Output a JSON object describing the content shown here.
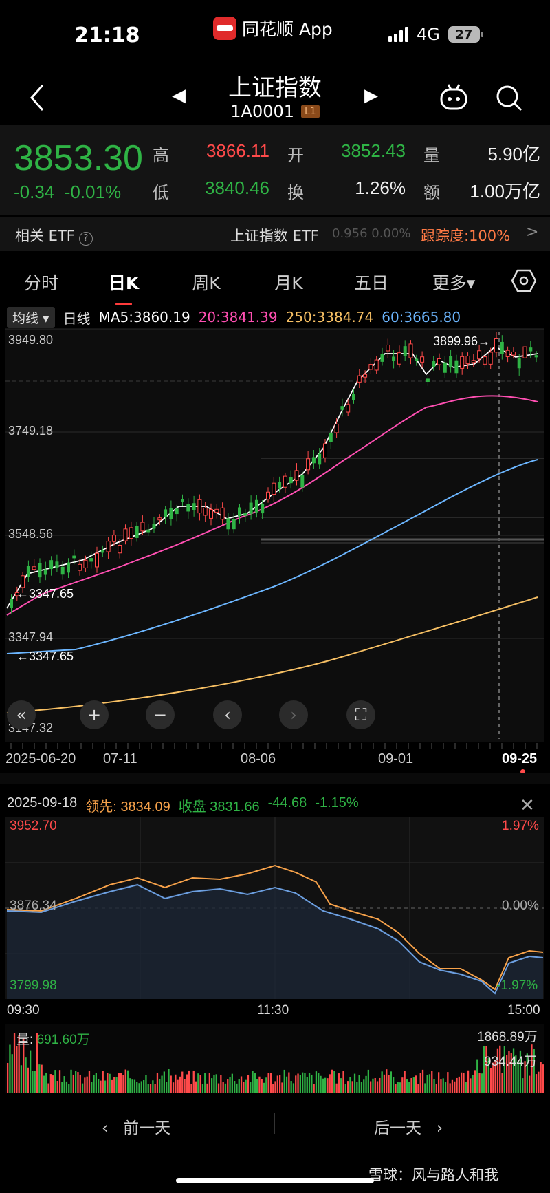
{
  "status_bar": {
    "time": "21:18",
    "app": "同花顺 App",
    "network": "4G",
    "battery": "27"
  },
  "header": {
    "title": "上证指数",
    "code": "1A0001",
    "level": "L1"
  },
  "quote": {
    "price": "3853.30",
    "change": "-0.34",
    "change_pct": "-0.01%",
    "high_label": "高",
    "high": "3866.11",
    "low_label": "低",
    "low": "3840.46",
    "open_label": "开",
    "open": "3852.43",
    "turnover_label": "换",
    "turnover": "1.26%",
    "volume_label": "量",
    "volume": "5.90亿",
    "amount_label": "额",
    "amount": "1.00万亿"
  },
  "etf": {
    "label": "相关 ETF",
    "help": "?",
    "name": "上证指数 ETF",
    "values": "0.956 0.00%",
    "tracking": "跟踪度:100%",
    "chevron": ">"
  },
  "tabs": [
    "分时",
    "日K",
    "周K",
    "月K",
    "五日",
    "更多▾"
  ],
  "active_tab": 1,
  "ma_legend": {
    "selector": "均线",
    "period": "日线",
    "ma5": "MA5:3860.19",
    "ma20": "20:3841.39",
    "ma250": "250:3384.74",
    "ma60": "60:3665.80",
    "colors": {
      "ma5": "#ffffff",
      "ma20": "#ff4fb2",
      "ma250": "#f7c064",
      "ma60": "#6cb6ff"
    }
  },
  "kline": {
    "y_labels": [
      "3949.80",
      "3749.18",
      "3548.56",
      "3347.94",
      "3147.32"
    ],
    "max_marker": "3899.96→",
    "min_marker": "←3347.65",
    "dates": [
      "2025-06-20",
      "07-11",
      "08-06",
      "09-01",
      "09-25"
    ]
  },
  "intraday": {
    "date": "2025-09-18",
    "lead_label": "领先:",
    "lead": "3834.09",
    "close_label": "收盘",
    "close": "3831.66",
    "change": "-44.68",
    "change_pct": "-1.15%",
    "close_button": "✕",
    "y_top": "3952.70",
    "y_mid": "3876.34",
    "y_bottom": "3799.98",
    "pct_top": "1.97%",
    "pct_mid": "0.00%",
    "pct_bottom": "-1.97%",
    "time_start": "09:30",
    "time_mid": "11:30",
    "time_end": "15:00",
    "volume_label": "量:",
    "volume_value": "691.60万",
    "vol_top": "1868.89万",
    "vol_mid": "934.44万"
  },
  "bottom_nav": {
    "prev": "前一天",
    "next": "后一天"
  },
  "watermark": "雪球：风与路人和我",
  "colors": {
    "up": "#ff4a4a",
    "down": "#2fb345",
    "bg": "#000000",
    "panel": "#141414"
  },
  "icons": [
    "back-arrow-icon",
    "left-triangle-icon",
    "right-triangle-icon",
    "robot-icon",
    "search-icon",
    "help-icon",
    "hexagon-settings-icon",
    "collapse-icon",
    "zoom-in-icon",
    "zoom-out-icon",
    "chevron-left-icon",
    "chevron-right-icon",
    "fullscreen-icon",
    "close-icon"
  ]
}
